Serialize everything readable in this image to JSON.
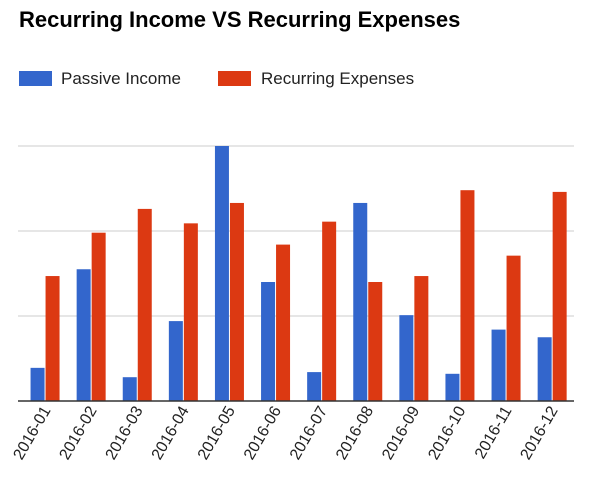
{
  "chart_data": {
    "type": "bar",
    "title": "Recurring Income VS Recurring Expenses",
    "xlabel": "",
    "ylabel": "",
    "categories": [
      "2016-01",
      "2016-02",
      "2016-03",
      "2016-04",
      "2016-05",
      "2016-06",
      "2016-07",
      "2016-08",
      "2016-09",
      "2016-10",
      "2016-11",
      "2016-12"
    ],
    "series": [
      {
        "name": "Passive Income",
        "color": "#3366cc",
        "values": [
          0.39,
          1.55,
          0.28,
          0.94,
          3.0,
          1.4,
          0.34,
          2.33,
          1.01,
          0.32,
          0.84,
          0.75
        ]
      },
      {
        "name": "Recurring Expenses",
        "color": "#dc3912",
        "values": [
          1.47,
          1.98,
          2.26,
          2.09,
          2.33,
          1.84,
          2.11,
          1.4,
          1.47,
          2.48,
          1.71,
          2.46
        ]
      }
    ],
    "ylim": [
      0,
      3
    ],
    "gridlines": [
      1,
      2,
      3
    ],
    "grid": true,
    "show_y_tick_labels": false,
    "legend_position": "top-left"
  }
}
